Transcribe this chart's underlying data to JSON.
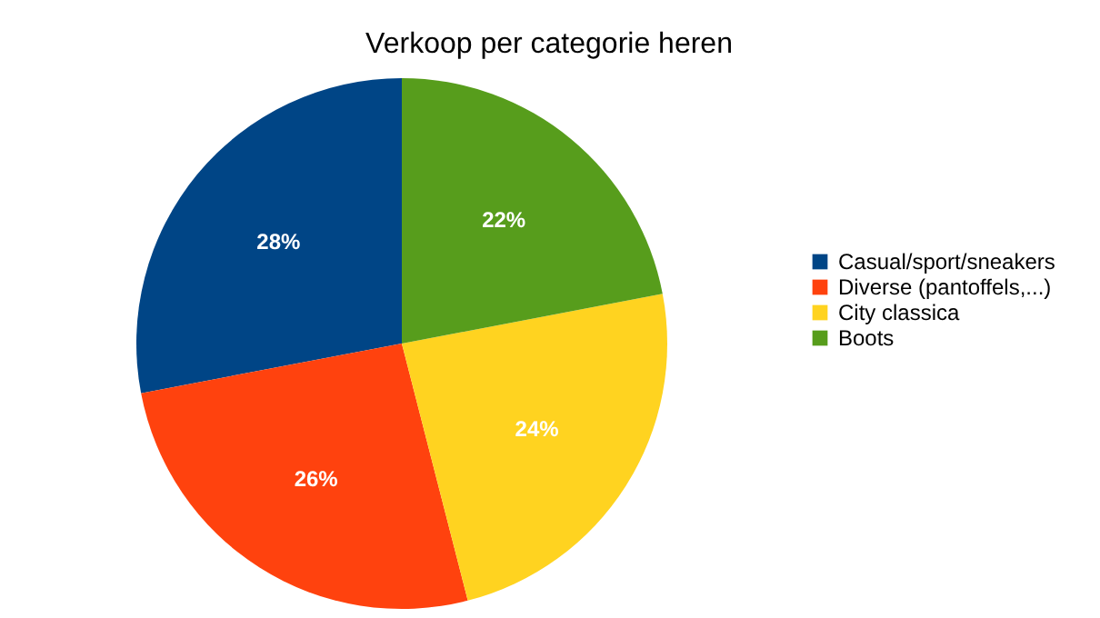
{
  "chart_data": {
    "type": "pie",
    "title": "Verkoop per categorie heren",
    "categories": [
      "Casual/sport/sneakers",
      "Diverse (pantoffels,...)",
      "City classica",
      "Boots"
    ],
    "values": [
      28,
      26,
      24,
      22
    ],
    "colors": [
      "#004586",
      "#ff420e",
      "#ffd320",
      "#579d1c"
    ],
    "value_labels": [
      "28%",
      "26%",
      "24%",
      "22%"
    ],
    "legend": "right"
  }
}
